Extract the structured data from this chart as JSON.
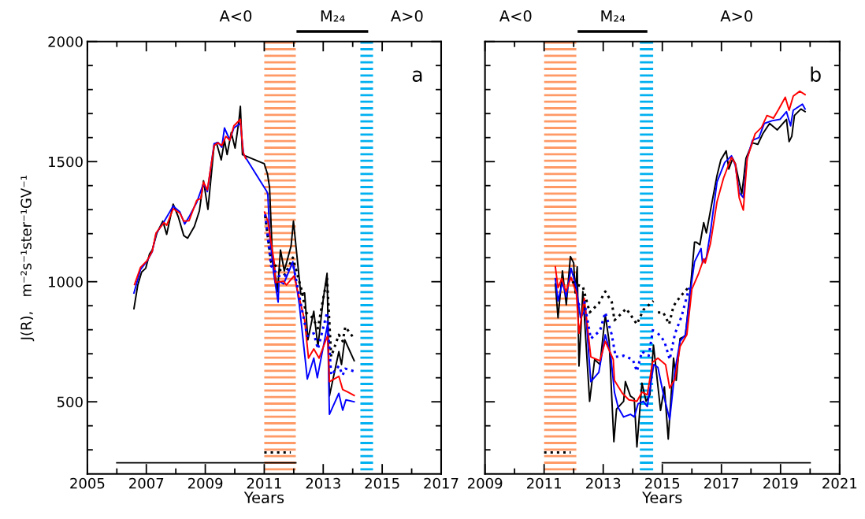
{
  "chart_data": [
    {
      "type": "line",
      "xlabel": "Years",
      "ylabel": "J(R),   m⁻²s⁻¹ster⁻¹GV⁻¹",
      "annotations": [
        "A<0",
        "M₂₄",
        "A>0",
        "a"
      ],
      "xlim": [
        2005,
        2017
      ],
      "xticks": [
        2005,
        {
          "value": 2006,
          "label": null
        },
        2007,
        {
          "value": 2008,
          "label": null
        },
        2009,
        {
          "value": 2010,
          "label": null
        },
        2011,
        {
          "value": 2012,
          "label": null
        },
        2013,
        {
          "value": 2014,
          "label": null
        },
        2015,
        {
          "value": 2016,
          "label": null
        },
        2017
      ],
      "ylim": [
        200,
        2000
      ],
      "yticks": [
        {
          "value": 300,
          "label": null
        },
        {
          "value": 400,
          "label": null
        },
        500,
        {
          "value": 600,
          "label": null
        },
        {
          "value": 700,
          "label": null
        },
        {
          "value": 800,
          "label": null
        },
        {
          "value": 900,
          "label": null
        },
        1000,
        {
          "value": 1100,
          "label": null
        },
        {
          "value": 1200,
          "label": null
        },
        {
          "value": 1300,
          "label": null
        },
        {
          "value": 1400,
          "label": null
        },
        1500,
        {
          "value": 1600,
          "label": null
        },
        {
          "value": 1700,
          "label": null
        },
        {
          "value": 1800,
          "label": null
        },
        {
          "value": 1900,
          "label": null
        },
        2000
      ],
      "grid": false,
      "bands": [
        {
          "axis": "x",
          "from": 2011.0,
          "to": 2012.07,
          "color": "#ff9966"
        },
        {
          "axis": "x",
          "from": 2014.26,
          "to": 2014.69,
          "color": "#00b0f0"
        }
      ],
      "series": [
        {
          "color": "#000000",
          "line_style": "solid",
          "x": [
            2006.58,
            2006.71,
            2006.84,
            2006.98,
            2007.11,
            2007.2,
            2007.36,
            2007.56,
            2007.69,
            2007.91,
            2008.09,
            2008.27,
            2008.4,
            2008.63,
            2008.8,
            2008.94,
            2009.09,
            2009.3,
            2009.38,
            2009.54,
            2009.65,
            2009.74,
            2009.88,
            2010.01,
            2010.14,
            2010.19,
            2010.26,
            2011.0,
            2011.11,
            2011.18,
            2011.27,
            2011.45,
            2011.55,
            2011.68,
            2011.91,
            2011.99,
            2012.24,
            2012.37,
            2012.48,
            2012.68,
            2012.82,
            2013.0,
            2013.13,
            2013.21,
            2013.53,
            2013.62,
            2013.73,
            2014.05
          ],
          "values": [
            888,
            986,
            1040,
            1056,
            1116,
            1132,
            1203,
            1252,
            1197,
            1323,
            1268,
            1192,
            1181,
            1230,
            1295,
            1420,
            1301,
            1567,
            1578,
            1507,
            1589,
            1529,
            1621,
            1556,
            1670,
            1730,
            1529,
            1491,
            1448,
            1393,
            1122,
            959,
            1132,
            1045,
            1149,
            1252,
            948,
            953,
            758,
            877,
            730,
            926,
            1035,
            524,
            709,
            655,
            758,
            671
          ]
        },
        {
          "color": "#0000ff",
          "line_style": "solid",
          "x": [
            2006.58,
            2006.8,
            2007.02,
            2007.2,
            2007.33,
            2007.6,
            2007.91,
            2008.14,
            2008.3,
            2008.45,
            2008.71,
            2008.94,
            2009.07,
            2009.3,
            2009.43,
            2009.56,
            2009.65,
            2009.83,
            2009.97,
            2010.19,
            2010.3,
            2011.08,
            2011.12,
            2011.19,
            2011.32,
            2011.47,
            2011.5,
            2011.66,
            2011.97,
            2012.19,
            2012.46,
            2012.68,
            2012.8,
            2013.15,
            2013.21,
            2013.53,
            2013.66,
            2013.77,
            2014.05
          ],
          "values": [
            953,
            1050,
            1085,
            1125,
            1200,
            1250,
            1315,
            1290,
            1240,
            1270,
            1330,
            1410,
            1375,
            1575,
            1580,
            1560,
            1640,
            1590,
            1640,
            1660,
            1530,
            1377,
            1365,
            1187,
            1035,
            915,
            1002,
            991,
            1083,
            904,
            595,
            682,
            600,
            823,
            448,
            535,
            465,
            508,
            500
          ]
        },
        {
          "color": "#ff0000",
          "line_style": "solid",
          "x": [
            2006.6,
            2006.8,
            2007.02,
            2007.2,
            2007.33,
            2007.6,
            2007.69,
            2007.91,
            2008.14,
            2008.27,
            2008.45,
            2008.71,
            2008.85,
            2008.94,
            2009.07,
            2009.3,
            2009.43,
            2009.56,
            2009.7,
            2009.83,
            2009.97,
            2010.19,
            2010.28,
            2010.37,
            2010.6,
            2011.01,
            2011.12,
            2011.34,
            2011.38,
            2011.66,
            2011.75,
            2012.01,
            2012.37,
            2012.5,
            2012.68,
            2012.86,
            2013.15,
            2013.21,
            2013.53,
            2013.66,
            2013.84,
            2014.05
          ],
          "values": [
            988,
            1059,
            1087,
            1127,
            1203,
            1246,
            1235,
            1304,
            1285,
            1252,
            1254,
            1339,
            1347,
            1415,
            1382,
            1567,
            1578,
            1567,
            1605,
            1589,
            1649,
            1676,
            1540,
            1513,
            null,
            1290,
            1252,
            1078,
            997,
            1002,
            986,
            1024,
            839,
            682,
            720,
            682,
            776,
            584,
            606,
            551,
            540,
            526
          ]
        },
        {
          "color": "#000000",
          "line_style": "dotted",
          "x": [
            2011.03,
            2011.23,
            2011.48,
            2011.7,
            2011.97,
            2012.28,
            2012.41,
            2012.64,
            2012.82,
            2013.0,
            2013.13,
            2013.27,
            2013.53,
            2013.66,
            2013.75,
            2014.05
          ],
          "values": [
            1274,
            1083,
            1056,
            1029,
            1100,
            959,
            872,
            850,
            806,
            931,
            1013,
            688,
            779,
            752,
            812,
            763
          ]
        },
        {
          "color": "#0000ff",
          "line_style": "dotted",
          "x": [
            2011.03,
            2011.23,
            2011.48,
            2011.7,
            2011.97,
            2012.28,
            2012.46,
            2012.68,
            2012.82,
            2013.13,
            2013.27,
            2013.53,
            2013.66,
            2013.75,
            2014.05
          ],
          "values": [
            1280,
            1067,
            1024,
            1024,
            1078,
            883,
            774,
            785,
            720,
            872,
            611,
            649,
            611,
            638,
            627
          ]
        },
        {
          "color": "#000000",
          "line_style": "solid",
          "x": [
            2006.0,
            2012.07
          ],
          "values": [
            246,
            246
          ]
        },
        {
          "color": "#000000",
          "line_style": "dotted",
          "x": [
            2011.0,
            2011.9
          ],
          "values": [
            289,
            289
          ]
        }
      ]
    },
    {
      "type": "line",
      "xlabel": "Years",
      "annotations": [
        "A<0",
        "M₂₄",
        "A>0",
        "b"
      ],
      "xlim": [
        2009,
        2021
      ],
      "xticks": [
        2009,
        {
          "value": 2010,
          "label": null
        },
        2011,
        {
          "value": 2012,
          "label": null
        },
        2013,
        {
          "value": 2014,
          "label": null
        },
        2015,
        {
          "value": 2016,
          "label": null
        },
        2017,
        {
          "value": 2018,
          "label": null
        },
        2019,
        {
          "value": 2020,
          "label": null
        },
        2021
      ],
      "ylim": [
        200,
        2000
      ],
      "yticks": [
        {
          "value": 300,
          "label": null
        },
        {
          "value": 400,
          "label": null
        },
        500,
        {
          "value": 600,
          "label": null
        },
        {
          "value": 700,
          "label": null
        },
        {
          "value": 800,
          "label": null
        },
        {
          "value": 900,
          "label": null
        },
        1000,
        {
          "value": 1100,
          "label": null
        },
        {
          "value": 1200,
          "label": null
        },
        {
          "value": 1300,
          "label": null
        },
        {
          "value": 1400,
          "label": null
        },
        1500,
        {
          "value": 1600,
          "label": null
        },
        {
          "value": 1700,
          "label": null
        },
        {
          "value": 1800,
          "label": null
        },
        {
          "value": 1900,
          "label": null
        },
        2000
      ],
      "tick_labels": "x",
      "grid": false,
      "bands": [
        {
          "axis": "x",
          "from": 2011.0,
          "to": 2012.09,
          "color": "#ff9966"
        },
        {
          "axis": "x",
          "from": 2014.24,
          "to": 2014.69,
          "color": "#00b0f0"
        }
      ],
      "series": [
        {
          "color": "#000000",
          "line_style": "solid",
          "x": [
            2011.38,
            2011.47,
            2011.62,
            2011.75,
            2011.89,
            2012.0,
            2012.05,
            2012.12,
            2012.18,
            2012.31,
            2012.54,
            2012.71,
            2012.89,
            2013.07,
            2013.2,
            2013.36,
            2013.45,
            2013.69,
            2013.75,
            2013.92,
            2014.05,
            2014.14,
            2014.31,
            2014.45,
            2014.58,
            2014.7,
            2014.94,
            2015.07,
            2015.2,
            2015.38,
            2015.47,
            2015.6,
            2015.78,
            2015.96,
            2016.09,
            2016.14,
            2016.27,
            2016.4,
            2016.49,
            2016.71,
            2016.85,
            2016.98,
            2017.16,
            2017.25,
            2017.38,
            2017.47,
            2017.6,
            2017.69,
            2017.83,
            2018.05,
            2018.23,
            2018.4,
            2018.63,
            2018.89,
            2019.2,
            2019.29,
            2019.38,
            2019.47,
            2019.69,
            2019.83
          ],
          "values": [
            991,
            850,
            1045,
            904,
            1105,
            1078,
            953,
            1062,
            649,
            959,
            502,
            676,
            655,
            861,
            752,
            334,
            470,
            502,
            584,
            524,
            513,
            312,
            578,
            502,
            529,
            736,
            464,
            562,
            345,
            682,
            589,
            763,
            774,
            986,
            1165,
            1165,
            1154,
            1246,
            1203,
            1350,
            1442,
            1507,
            1545,
            1469,
            1513,
            1491,
            1415,
            1366,
            1513,
            1578,
            1572,
            1616,
            1659,
            1632,
            1676,
            1583,
            1605,
            1692,
            1719,
            1708
          ]
        },
        {
          "color": "#0000ff",
          "line_style": "solid",
          "x": [
            2011.38,
            2011.47,
            2011.62,
            2011.75,
            2011.91,
            2012.09,
            2012.23,
            2012.4,
            2012.58,
            2012.85,
            2013.07,
            2013.25,
            2013.38,
            2013.51,
            2013.69,
            2013.92,
            2014.05,
            2014.18,
            2014.36,
            2014.49,
            2014.71,
            2014.85,
            2015.03,
            2015.25,
            2015.43,
            2015.6,
            2015.78,
            2015.96,
            2016.09,
            2016.31,
            2016.36,
            2016.49,
            2016.63,
            2016.85,
            2017.11,
            2017.34,
            2017.47,
            2017.6,
            2017.74,
            2017.87,
            2018.05,
            2018.27,
            2018.45,
            2018.71,
            2018.98,
            2019.2,
            2019.34,
            2019.43,
            2019.74,
            2019.83
          ],
          "values": [
            1013,
            920,
            997,
            937,
            1056,
            975,
            850,
            883,
            584,
            622,
            779,
            698,
            540,
            475,
            437,
            448,
            437,
            492,
            502,
            480,
            655,
            643,
            535,
            426,
            633,
            752,
            779,
            969,
            1083,
            1138,
            1078,
            1100,
            1209,
            1415,
            1496,
            1524,
            1485,
            1371,
            1350,
            1513,
            1589,
            1600,
            1659,
            1670,
            1676,
            1708,
            1649,
            1714,
            1739,
            1719
          ]
        },
        {
          "color": "#ff0000",
          "line_style": "solid",
          "x": [
            2011.38,
            2011.47,
            2011.6,
            2011.74,
            2011.91,
            2012.09,
            2012.18,
            2012.36,
            2012.58,
            2012.89,
            2013.07,
            2013.34,
            2013.38,
            2013.65,
            2013.87,
            2014.14,
            2014.31,
            2014.49,
            2014.67,
            2014.85,
            2015.11,
            2015.25,
            2015.43,
            2015.6,
            2015.83,
            2016.0,
            2016.23,
            2016.4,
            2016.45,
            2016.63,
            2016.85,
            2017.07,
            2017.34,
            2017.47,
            2017.6,
            2017.74,
            2017.87,
            2018.14,
            2018.36,
            2018.54,
            2018.76,
            2018.94,
            2019.16,
            2019.29,
            2019.43,
            2019.65,
            2019.83
          ],
          "values": [
            1062,
            975,
            1013,
            959,
            1018,
            953,
            785,
            931,
            687,
            671,
            752,
            676,
            589,
            535,
            508,
            502,
            540,
            529,
            665,
            682,
            655,
            557,
            595,
            730,
            779,
            969,
            1035,
            1095,
            1078,
            1160,
            1333,
            1431,
            1518,
            1491,
            1350,
            1298,
            1513,
            1616,
            1643,
            1692,
            1681,
            1719,
            1768,
            1714,
            1773,
            1793,
            1779
          ]
        },
        {
          "color": "#000000",
          "line_style": "dotted",
          "x": [
            2011.95,
            2012.14,
            2012.31,
            2012.54,
            2012.85,
            2013.07,
            2013.29,
            2013.38,
            2013.78,
            2014.14,
            2014.36,
            2014.7,
            2014.78,
            2014.85,
            2015.03,
            2015.23,
            2015.38,
            2015.6,
            2015.91
          ],
          "values": [
            1000,
            986,
            980,
            872,
            910,
            959,
            915,
            839,
            888,
            823,
            883,
            920,
            null,
            872,
            872,
            823,
            899,
            937,
            980
          ]
        },
        {
          "color": "#0000ff",
          "line_style": "dotted",
          "x": [
            2012.14,
            2012.36,
            2012.58,
            2012.89,
            2013.07,
            2013.29,
            2013.42,
            2013.69,
            2014.0,
            2014.14,
            2014.31,
            2014.54,
            2014.7,
            2014.78,
            2014.85,
            2015.07,
            2015.25,
            2015.43,
            2015.65,
            2015.91
          ],
          "values": [
            904,
            915,
            763,
            796,
            872,
            779,
            687,
            692,
            676,
            627,
            709,
            692,
            812,
            null,
            785,
            752,
            676,
            785,
            855,
            975
          ]
        },
        {
          "color": "#000000",
          "line_style": "solid",
          "x": [
            2015.0,
            2020.0
          ],
          "values": [
            246,
            246
          ]
        },
        {
          "color": "#000000",
          "line_style": "dotted",
          "x": [
            2011.0,
            2011.9
          ],
          "values": [
            289,
            289
          ]
        }
      ]
    }
  ]
}
